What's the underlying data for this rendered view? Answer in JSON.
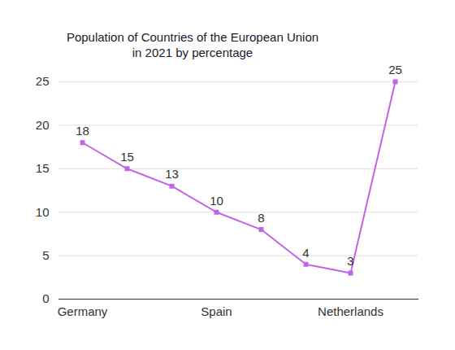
{
  "chart_data": {
    "type": "line",
    "title": "Population of Countries of the European Union\nin 2021 by percentage",
    "categories": [
      "Germany",
      null,
      null,
      "Spain",
      null,
      null,
      "Netherlands",
      null
    ],
    "values": [
      18,
      15,
      13,
      10,
      8,
      4,
      3,
      25
    ],
    "color": "#c264e8",
    "marker": "square",
    "data_labels": true,
    "ylim": [
      0,
      25
    ],
    "yticks": [
      0,
      5,
      10,
      15,
      20,
      25
    ],
    "grid": true
  }
}
